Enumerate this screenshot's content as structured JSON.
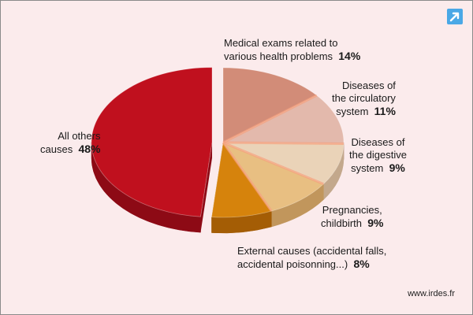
{
  "chart_data": {
    "type": "pie",
    "title": "",
    "slices": [
      {
        "lines": [
          "Medical exams related to",
          "various health problems"
        ],
        "pct_label": "14%",
        "value": 14,
        "top": "#d28c78",
        "side": "#a8604e",
        "exploded": false
      },
      {
        "lines": [
          "Diseases of",
          "the circulatory",
          "system"
        ],
        "pct_label": "11%",
        "value": 11,
        "top": "#e3b9ac",
        "side": "#b88a7e",
        "exploded": false
      },
      {
        "lines": [
          "Diseases of",
          "the digestive",
          "system"
        ],
        "pct_label": "9%",
        "value": 9,
        "top": "#ead3b8",
        "side": "#c3a88c",
        "exploded": false
      },
      {
        "lines": [
          "Pregnancies,",
          "childbirth"
        ],
        "pct_label": "9%",
        "value": 9,
        "top": "#e8bf82",
        "side": "#c1965c",
        "exploded": false
      },
      {
        "lines": [
          "External causes (accidental falls,",
          "accidental poisonning...)"
        ],
        "pct_label": "8%",
        "value": 8,
        "top": "#d6830c",
        "side": "#a45d05",
        "exploded": false
      },
      {
        "lines": [
          "All others",
          "causes"
        ],
        "pct_label": "48%",
        "value": 48,
        "top": "#c0101e",
        "side": "#8d0a15",
        "exploded": true
      }
    ],
    "highlight_color": "#f5a07c"
  },
  "footer": {
    "website": "www.irdes.fr"
  },
  "logo": {
    "icon": "diagonal-arrow-icon",
    "color": "#4aa8e6"
  }
}
